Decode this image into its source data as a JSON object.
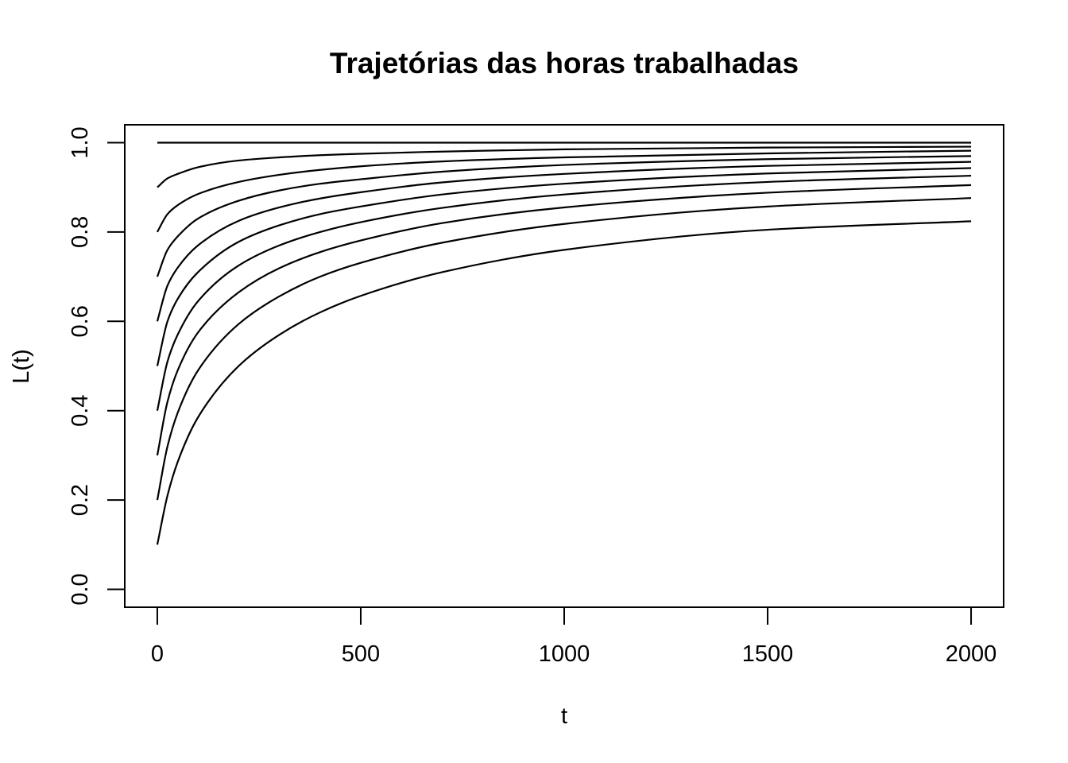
{
  "chart_data": {
    "type": "line",
    "title": "Trajetórias das horas trabalhadas",
    "xlabel": "t",
    "ylabel": "L(t)",
    "xlim": [
      -80,
      2080
    ],
    "ylim": [
      -0.04,
      1.04
    ],
    "xticks": [
      0,
      500,
      1000,
      1500,
      2000
    ],
    "yticks": [
      0.0,
      0.2,
      0.4,
      0.6,
      0.8,
      1.0
    ],
    "xtick_labels": [
      "0",
      "500",
      "1000",
      "1500",
      "2000"
    ],
    "ytick_labels": [
      "0.0",
      "0.2",
      "0.4",
      "0.6",
      "0.8",
      "1.0"
    ],
    "grid": false,
    "legend": "none",
    "line_color": "#000000",
    "x": [
      0,
      25,
      50,
      100,
      200,
      300,
      400,
      500,
      700,
      1000,
      1500,
      2000
    ],
    "series": [
      {
        "values": [
          1.0,
          1.0,
          1.0,
          1.0,
          1.0,
          1.0,
          1.0,
          1.0,
          1.0,
          1.0,
          1.0,
          1.0
        ]
      },
      {
        "values": [
          0.9,
          0.92,
          0.93,
          0.945,
          0.96,
          0.967,
          0.972,
          0.975,
          0.98,
          0.985,
          0.989,
          0.991
        ]
      },
      {
        "values": [
          0.8,
          0.84,
          0.86,
          0.885,
          0.912,
          0.928,
          0.939,
          0.947,
          0.958,
          0.967,
          0.976,
          0.982
        ]
      },
      {
        "values": [
          0.7,
          0.76,
          0.79,
          0.83,
          0.87,
          0.893,
          0.908,
          0.918,
          0.935,
          0.95,
          0.963,
          0.97
        ]
      },
      {
        "values": [
          0.6,
          0.68,
          0.72,
          0.77,
          0.825,
          0.855,
          0.875,
          0.889,
          0.911,
          0.93,
          0.948,
          0.957
        ]
      },
      {
        "values": [
          0.5,
          0.6,
          0.65,
          0.71,
          0.778,
          0.815,
          0.84,
          0.857,
          0.884,
          0.908,
          0.931,
          0.943
        ]
      },
      {
        "values": [
          0.4,
          0.51,
          0.57,
          0.645,
          0.725,
          0.77,
          0.8,
          0.822,
          0.854,
          0.884,
          0.912,
          0.926
        ]
      },
      {
        "values": [
          0.3,
          0.42,
          0.49,
          0.575,
          0.665,
          0.719,
          0.755,
          0.781,
          0.82,
          0.855,
          0.888,
          0.905
        ]
      },
      {
        "values": [
          0.2,
          0.32,
          0.395,
          0.49,
          0.594,
          0.656,
          0.7,
          0.731,
          0.776,
          0.818,
          0.857,
          0.876
        ]
      },
      {
        "values": [
          0.1,
          0.21,
          0.285,
          0.385,
          0.5,
          0.57,
          0.62,
          0.657,
          0.71,
          0.76,
          0.805,
          0.824
        ]
      }
    ]
  }
}
